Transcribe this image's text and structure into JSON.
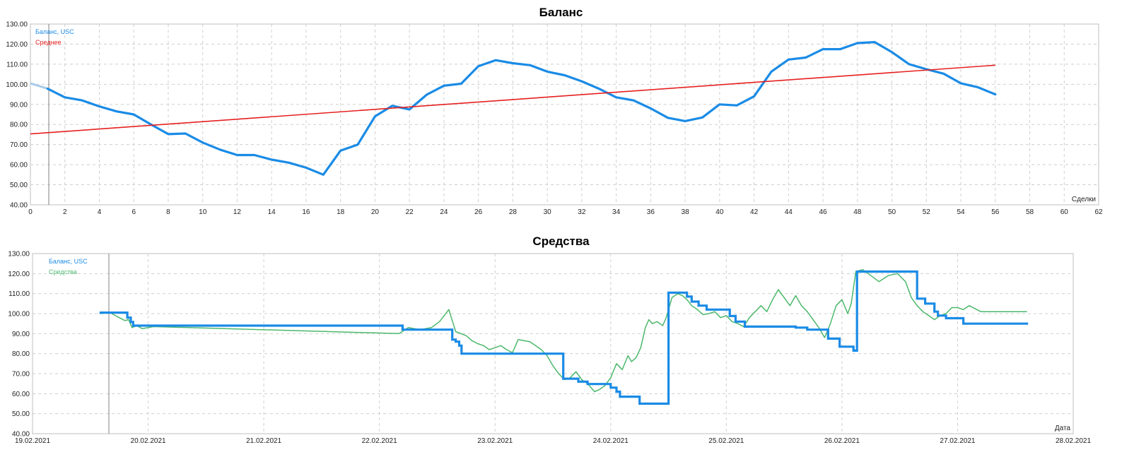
{
  "chart_data": [
    {
      "type": "line",
      "title": "Баланс",
      "xlabel": "Сделки",
      "ylabel": "",
      "xlim": [
        0,
        62
      ],
      "ylim": [
        40,
        130
      ],
      "x_ticks": [
        0,
        2,
        4,
        6,
        8,
        10,
        12,
        14,
        16,
        18,
        20,
        22,
        24,
        26,
        28,
        30,
        32,
        34,
        36,
        38,
        40,
        42,
        44,
        46,
        48,
        50,
        52,
        54,
        56,
        58,
        60,
        62
      ],
      "y_ticks": [
        "40.00",
        "50.00",
        "60.00",
        "70.00",
        "80.00",
        "90.00",
        "100.00",
        "110.00",
        "120.00",
        "130.00"
      ],
      "grid": true,
      "legend_position": "top-left",
      "colors": {
        "balance": "#1a8be6",
        "average": "#e62020",
        "start": "#a8cbe8"
      },
      "series": [
        {
          "name": "Баланс, USC",
          "x": [
            0,
            1,
            2,
            3,
            4,
            5,
            6,
            7,
            8,
            9,
            10,
            11,
            12,
            13,
            14,
            15,
            16,
            17,
            18,
            19,
            20,
            21,
            22,
            23,
            24,
            25,
            26,
            27,
            28,
            29,
            30,
            31,
            32,
            33,
            34,
            35,
            36,
            37,
            38,
            39,
            40,
            41,
            42,
            43,
            44,
            45,
            46,
            47,
            48,
            49,
            50,
            51,
            52,
            53,
            54,
            55,
            56
          ],
          "values": [
            100.5,
            97.8,
            93.5,
            92,
            89,
            86.5,
            85,
            80,
            75.2,
            75.5,
            71,
            67.5,
            64.8,
            64.8,
            62.5,
            61,
            58.5,
            55,
            67,
            70,
            84,
            89.3,
            87.5,
            94.8,
            99.3,
            100.3,
            109,
            112,
            110.5,
            109.5,
            106.3,
            104.5,
            101.5,
            97.8,
            93.5,
            92,
            88,
            83.3,
            81.7,
            83.5,
            90,
            89.5,
            94,
            106.3,
            112.3,
            113.3,
            117.5,
            117.5,
            120.5,
            121,
            116,
            110,
            107.5,
            105.3,
            100.5,
            98.5,
            95
          ]
        },
        {
          "name": "Среднее",
          "x": [
            0,
            56
          ],
          "values": [
            75.3,
            109.5
          ]
        }
      ]
    },
    {
      "type": "line",
      "title": "Средства",
      "xlabel": "Дата",
      "ylabel": "",
      "xlim": [
        "19.02.2021",
        "28.02.2021"
      ],
      "ylim": [
        40,
        130
      ],
      "x_ticks": [
        "19.02.2021",
        "20.02.2021",
        "21.02.2021",
        "22.02.2021",
        "23.02.2021",
        "24.02.2021",
        "25.02.2021",
        "26.02.2021",
        "27.02.2021",
        "28.02.2021"
      ],
      "y_ticks": [
        "40.00",
        "50.00",
        "60.00",
        "70.00",
        "80.00",
        "90.00",
        "100.00",
        "110.00",
        "120.00",
        "130.00"
      ],
      "grid": true,
      "legend_position": "top-left",
      "colors": {
        "balance": "#1a8be6",
        "equity": "#4cb86c"
      },
      "series": [
        {
          "name": "Баланс, USC",
          "step": true,
          "x": [
            19.58,
            19.82,
            19.85,
            19.87,
            22.17,
            22.2,
            22.6,
            22.63,
            22.66,
            22.69,
            22.71,
            23.56,
            23.59,
            23.72,
            23.8,
            23.97,
            24.0,
            24.05,
            24.08,
            24.25,
            24.48,
            24.5,
            24.58,
            24.66,
            24.7,
            24.76,
            24.83,
            24.9,
            25.03,
            25.08,
            25.16,
            25.2,
            25.6,
            25.7,
            25.88,
            25.98,
            26.05,
            26.1,
            26.13,
            26.55,
            26.65,
            26.72,
            26.8,
            26.83,
            26.9,
            27.05,
            27.2,
            27.4,
            27.61
          ],
          "values": [
            100.5,
            98,
            95.8,
            94,
            94,
            92,
            92,
            87,
            86,
            84,
            80,
            80,
            67.5,
            66,
            64.8,
            64.8,
            63,
            61,
            58.5,
            55,
            55,
            110.5,
            110.5,
            108.5,
            106,
            104,
            102,
            102,
            98.8,
            96,
            93.5,
            93.5,
            93,
            92,
            87.5,
            83.5,
            83.5,
            81.5,
            121,
            121,
            107.5,
            105,
            101,
            99,
            97.7,
            95,
            95,
            95,
            95
          ]
        },
        {
          "name": "Средства",
          "x": [
            19.58,
            19.67,
            19.75,
            19.8,
            19.83,
            19.86,
            19.9,
            19.95,
            20.0,
            20.05,
            22.17,
            22.25,
            22.35,
            22.45,
            22.52,
            22.6,
            22.66,
            22.75,
            22.8,
            22.85,
            22.9,
            22.95,
            23.0,
            23.05,
            23.1,
            23.15,
            23.2,
            23.3,
            23.35,
            23.4,
            23.45,
            23.5,
            23.55,
            23.6,
            23.65,
            23.7,
            23.75,
            23.8,
            23.83,
            23.86,
            23.9,
            23.95,
            24.0,
            24.05,
            24.1,
            24.15,
            24.18,
            24.22,
            24.26,
            24.3,
            24.33,
            24.36,
            24.4,
            24.45,
            24.48,
            24.53,
            24.58,
            24.62,
            24.66,
            24.7,
            24.75,
            24.8,
            24.85,
            24.9,
            24.95,
            25.0,
            25.05,
            25.1,
            25.15,
            25.2,
            25.25,
            25.3,
            25.35,
            25.4,
            25.45,
            25.5,
            25.55,
            25.6,
            25.65,
            25.7,
            25.75,
            25.8,
            25.85,
            25.9,
            25.95,
            26.0,
            26.05,
            26.08,
            26.12,
            26.18,
            26.25,
            26.32,
            26.4,
            26.48,
            26.55,
            26.6,
            26.65,
            26.7,
            26.75,
            26.8,
            26.85,
            26.9,
            26.95,
            27.0,
            27.05,
            27.1,
            27.2,
            27.3,
            27.4,
            27.6
          ],
          "values": [
            100,
            100.5,
            98,
            96.5,
            97,
            93,
            94,
            92.5,
            93,
            93.5,
            90,
            93,
            92,
            93,
            96,
            102,
            91,
            89,
            86.5,
            85,
            84,
            82,
            83,
            84,
            82,
            80.5,
            87,
            86,
            84,
            82,
            79,
            74,
            70,
            67,
            68,
            71,
            67,
            65,
            63,
            61,
            62,
            64,
            68,
            75,
            72,
            79,
            76,
            78,
            83,
            93,
            97,
            95,
            96,
            94,
            98,
            108,
            110,
            109,
            107,
            104,
            102,
            99.5,
            100,
            101,
            98,
            99,
            96,
            95,
            93.5,
            98,
            101,
            104,
            101,
            107,
            112,
            108,
            104,
            109,
            104,
            101,
            97,
            93,
            88,
            95,
            104,
            107,
            100,
            105,
            121,
            122,
            119,
            116,
            119,
            120,
            116,
            108,
            104,
            101,
            99,
            97,
            99,
            100,
            103,
            103,
            102,
            104,
            101,
            101,
            101,
            101
          ]
        }
      ]
    }
  ]
}
